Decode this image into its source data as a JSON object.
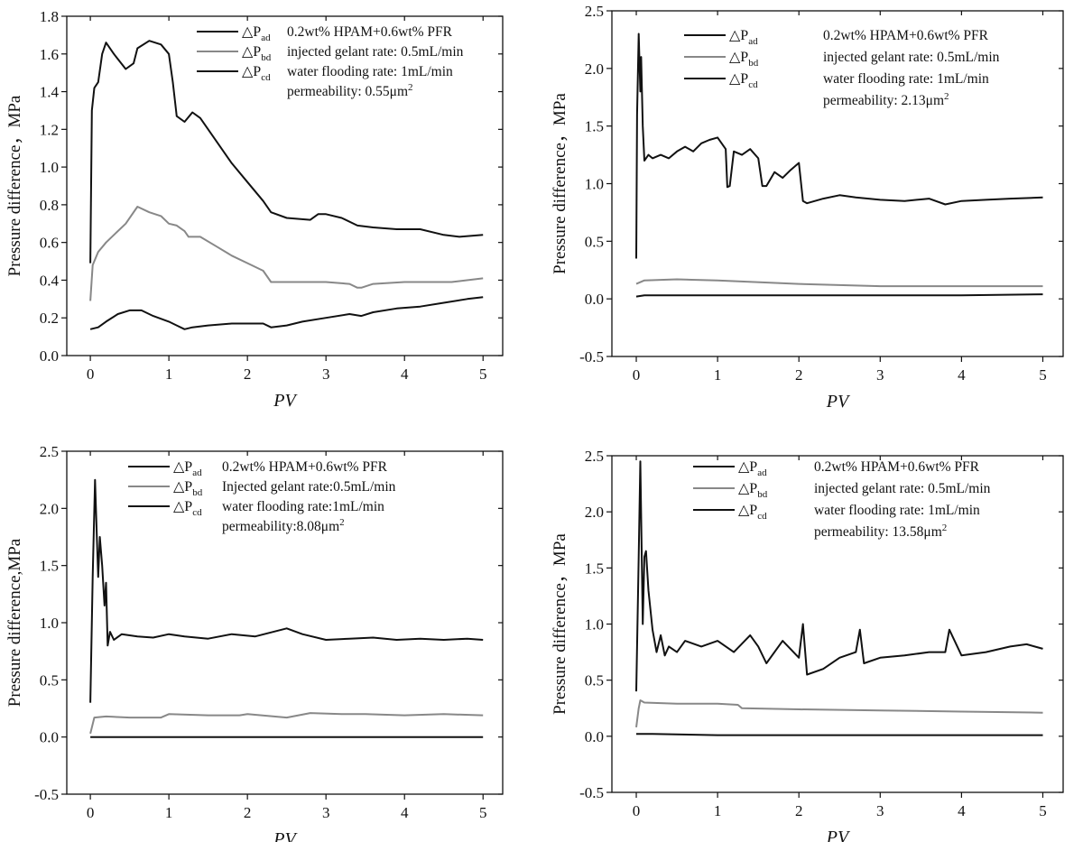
{
  "chart_data": [
    {
      "type": "line",
      "xlabel": "PV",
      "ylabel": "Pressure difference，MPa",
      "xlim": [
        -0.3,
        5.25
      ],
      "ylim": [
        0.0,
        1.8
      ],
      "xticks": [
        0,
        1,
        2,
        3,
        4,
        5
      ],
      "yticks": [
        0.0,
        0.2,
        0.4,
        0.6,
        0.8,
        1.0,
        1.2,
        1.4,
        1.6,
        1.8
      ],
      "ytick_labels": [
        "0.0",
        "0.2",
        "0.4",
        "0.6",
        "0.8",
        "1.0",
        "1.2",
        "1.4",
        "1.6",
        "1.8"
      ],
      "legend": [
        {
          "base": "△P",
          "sub": "ad",
          "note": "0.2wt% HPAM+0.6wt% PFR"
        },
        {
          "base": "△P",
          "sub": "bd",
          "note": "injected gelant rate: 0.5mL/min"
        },
        {
          "base": "△P",
          "sub": "cd",
          "note": "water flooding rate: 1mL/min"
        },
        {
          "base": "",
          "sub": "",
          "note": "permeability: 0.55μm",
          "sup": "2"
        }
      ],
      "series": [
        {
          "name": "△Pad",
          "color": "#111111",
          "x": [
            0.0,
            0.02,
            0.05,
            0.1,
            0.15,
            0.2,
            0.3,
            0.45,
            0.55,
            0.6,
            0.75,
            0.9,
            1.0,
            1.05,
            1.1,
            1.2,
            1.3,
            1.4,
            1.6,
            1.8,
            2.0,
            2.2,
            2.3,
            2.5,
            2.8,
            2.9,
            3.0,
            3.2,
            3.4,
            3.6,
            3.9,
            4.2,
            4.5,
            4.7,
            5.0
          ],
          "y": [
            0.49,
            1.3,
            1.42,
            1.45,
            1.6,
            1.66,
            1.6,
            1.52,
            1.55,
            1.63,
            1.67,
            1.65,
            1.6,
            1.45,
            1.27,
            1.24,
            1.29,
            1.26,
            1.14,
            1.02,
            0.92,
            0.82,
            0.76,
            0.73,
            0.72,
            0.75,
            0.75,
            0.73,
            0.69,
            0.68,
            0.67,
            0.67,
            0.64,
            0.63,
            0.64
          ]
        },
        {
          "name": "△Pbd",
          "color": "#888888",
          "x": [
            0.0,
            0.03,
            0.1,
            0.2,
            0.3,
            0.45,
            0.6,
            0.75,
            0.9,
            1.0,
            1.1,
            1.2,
            1.25,
            1.4,
            1.6,
            1.8,
            2.0,
            2.2,
            2.3,
            2.5,
            2.8,
            3.0,
            3.3,
            3.4,
            3.45,
            3.6,
            4.0,
            4.3,
            4.6,
            5.0
          ],
          "y": [
            0.29,
            0.48,
            0.55,
            0.6,
            0.64,
            0.7,
            0.79,
            0.76,
            0.74,
            0.7,
            0.69,
            0.66,
            0.63,
            0.63,
            0.58,
            0.53,
            0.49,
            0.45,
            0.39,
            0.39,
            0.39,
            0.39,
            0.38,
            0.36,
            0.36,
            0.38,
            0.39,
            0.39,
            0.39,
            0.41
          ]
        },
        {
          "name": "△Pcd",
          "color": "#111111",
          "x": [
            0.0,
            0.1,
            0.2,
            0.35,
            0.5,
            0.65,
            0.8,
            1.0,
            1.1,
            1.2,
            1.3,
            1.5,
            1.8,
            2.1,
            2.2,
            2.3,
            2.5,
            2.7,
            3.0,
            3.3,
            3.45,
            3.6,
            3.9,
            4.2,
            4.5,
            4.8,
            5.0
          ],
          "y": [
            0.14,
            0.15,
            0.18,
            0.22,
            0.24,
            0.24,
            0.21,
            0.18,
            0.16,
            0.14,
            0.15,
            0.16,
            0.17,
            0.17,
            0.17,
            0.15,
            0.16,
            0.18,
            0.2,
            0.22,
            0.21,
            0.23,
            0.25,
            0.26,
            0.28,
            0.3,
            0.31
          ]
        }
      ]
    },
    {
      "type": "line",
      "xlabel": "PV",
      "ylabel": "Pressure difference，MPa",
      "xlim": [
        -0.3,
        5.25
      ],
      "ylim": [
        -0.5,
        2.5
      ],
      "xticks": [
        0,
        1,
        2,
        3,
        4,
        5
      ],
      "yticks": [
        -0.5,
        0.0,
        0.5,
        1.0,
        1.5,
        2.0,
        2.5
      ],
      "ytick_labels": [
        "-0.5",
        "0.0",
        "0.5",
        "1.0",
        "1.5",
        "2.0",
        "2.5"
      ],
      "legend": [
        {
          "base": "△P",
          "sub": "ad",
          "note": "0.2wt% HPAM+0.6wt% PFR"
        },
        {
          "base": "△P",
          "sub": "bd",
          "note": "injected gelant rate: 0.5mL/min"
        },
        {
          "base": "△P",
          "sub": "cd",
          "note": "water flooding rate: 1mL/min"
        },
        {
          "base": "",
          "sub": "",
          "note": "permeability: 2.13μm",
          "sup": "2"
        }
      ],
      "series": [
        {
          "name": "△Pad",
          "color": "#111111",
          "x": [
            0.0,
            0.01,
            0.03,
            0.05,
            0.06,
            0.08,
            0.1,
            0.15,
            0.2,
            0.3,
            0.4,
            0.5,
            0.6,
            0.7,
            0.8,
            0.9,
            1.0,
            1.05,
            1.1,
            1.12,
            1.15,
            1.2,
            1.3,
            1.4,
            1.5,
            1.55,
            1.6,
            1.7,
            1.8,
            1.9,
            2.0,
            2.05,
            2.1,
            2.3,
            2.5,
            2.7,
            3.0,
            3.3,
            3.6,
            3.8,
            4.0,
            4.3,
            4.6,
            5.0
          ],
          "y": [
            0.35,
            1.6,
            2.3,
            1.8,
            2.1,
            1.5,
            1.2,
            1.25,
            1.22,
            1.25,
            1.22,
            1.28,
            1.32,
            1.28,
            1.35,
            1.38,
            1.4,
            1.35,
            1.3,
            0.97,
            0.98,
            1.28,
            1.25,
            1.3,
            1.22,
            0.98,
            0.98,
            1.1,
            1.05,
            1.12,
            1.18,
            0.85,
            0.83,
            0.87,
            0.9,
            0.88,
            0.86,
            0.85,
            0.87,
            0.82,
            0.85,
            0.86,
            0.87,
            0.88
          ]
        },
        {
          "name": "△Pbd",
          "color": "#888888",
          "x": [
            0.0,
            0.1,
            0.5,
            1.0,
            2.0,
            3.0,
            4.0,
            5.0
          ],
          "y": [
            0.13,
            0.16,
            0.17,
            0.16,
            0.13,
            0.11,
            0.11,
            0.11
          ]
        },
        {
          "name": "△Pcd",
          "color": "#111111",
          "x": [
            0.0,
            0.1,
            1.0,
            2.0,
            3.0,
            4.0,
            5.0
          ],
          "y": [
            0.02,
            0.03,
            0.03,
            0.03,
            0.03,
            0.03,
            0.04
          ]
        }
      ]
    },
    {
      "type": "line",
      "xlabel": "PV",
      "ylabel": "Pressure difference,MPa",
      "xlim": [
        -0.3,
        5.25
      ],
      "ylim": [
        -0.5,
        2.5
      ],
      "xticks": [
        0,
        1,
        2,
        3,
        4,
        5
      ],
      "yticks": [
        -0.5,
        0.0,
        0.5,
        1.0,
        1.5,
        2.0,
        2.5
      ],
      "ytick_labels": [
        "-0.5",
        "0.0",
        "0.5",
        "1.0",
        "1.5",
        "2.0",
        "2.5"
      ],
      "legend": [
        {
          "base": "△P",
          "sub": "ad",
          "note": "0.2wt% HPAM+0.6wt% PFR"
        },
        {
          "base": "△P",
          "sub": "bd",
          "note": "Injected gelant rate:0.5mL/min"
        },
        {
          "base": "△P",
          "sub": "cd",
          "note": "water flooding rate:1mL/min"
        },
        {
          "base": "",
          "sub": "",
          "note": "permeability:8.08μm",
          "sup": "2"
        }
      ],
      "series": [
        {
          "name": "△Pad",
          "color": "#111111",
          "x": [
            0.0,
            0.03,
            0.06,
            0.08,
            0.1,
            0.12,
            0.15,
            0.18,
            0.2,
            0.22,
            0.25,
            0.3,
            0.4,
            0.6,
            0.8,
            1.0,
            1.2,
            1.5,
            1.8,
            2.1,
            2.5,
            2.7,
            3.0,
            3.3,
            3.6,
            3.9,
            4.2,
            4.5,
            4.8,
            5.0
          ],
          "y": [
            0.3,
            1.4,
            2.25,
            1.8,
            1.4,
            1.75,
            1.5,
            1.15,
            1.35,
            0.8,
            0.92,
            0.85,
            0.9,
            0.88,
            0.87,
            0.9,
            0.88,
            0.86,
            0.9,
            0.88,
            0.95,
            0.9,
            0.85,
            0.86,
            0.87,
            0.85,
            0.86,
            0.85,
            0.86,
            0.85
          ]
        },
        {
          "name": "△Pbd",
          "color": "#888888",
          "x": [
            0.0,
            0.05,
            0.2,
            0.5,
            0.9,
            1.0,
            1.5,
            1.9,
            2.0,
            2.5,
            2.8,
            3.2,
            3.5,
            4.0,
            4.5,
            5.0
          ],
          "y": [
            0.03,
            0.17,
            0.18,
            0.17,
            0.17,
            0.2,
            0.19,
            0.19,
            0.2,
            0.17,
            0.21,
            0.2,
            0.2,
            0.19,
            0.2,
            0.19
          ]
        },
        {
          "name": "△Pcd",
          "color": "#111111",
          "x": [
            0.0,
            0.1,
            1.0,
            2.0,
            3.0,
            4.0,
            5.0
          ],
          "y": [
            0.0,
            0.0,
            0.0,
            0.0,
            0.0,
            0.0,
            0.0
          ]
        }
      ]
    },
    {
      "type": "line",
      "xlabel": "PV",
      "ylabel": "Pressure difference，MPa",
      "xlim": [
        -0.3,
        5.25
      ],
      "ylim": [
        -0.5,
        2.5
      ],
      "xticks": [
        0,
        1,
        2,
        3,
        4,
        5
      ],
      "yticks": [
        -0.5,
        0.0,
        0.5,
        1.0,
        1.5,
        2.0,
        2.5
      ],
      "ytick_labels": [
        "-0.5",
        "0.0",
        "0.5",
        "1.0",
        "1.5",
        "2.0",
        "2.5"
      ],
      "legend": [
        {
          "base": "△P",
          "sub": "ad",
          "note": "0.2wt% HPAM+0.6wt% PFR"
        },
        {
          "base": "△P",
          "sub": "bd",
          "note": "injected gelant rate: 0.5mL/min"
        },
        {
          "base": "△P",
          "sub": "cd",
          "note": "water flooding rate: 1mL/min"
        },
        {
          "base": "",
          "sub": "",
          "note": "permeability: 13.58μm",
          "sup": "2"
        }
      ],
      "series": [
        {
          "name": "△Pad",
          "color": "#111111",
          "x": [
            0.0,
            0.03,
            0.05,
            0.08,
            0.1,
            0.12,
            0.15,
            0.2,
            0.25,
            0.3,
            0.35,
            0.4,
            0.5,
            0.6,
            0.8,
            1.0,
            1.2,
            1.4,
            1.5,
            1.6,
            1.8,
            2.0,
            2.05,
            2.1,
            2.3,
            2.5,
            2.7,
            2.75,
            2.8,
            3.0,
            3.3,
            3.6,
            3.8,
            3.85,
            4.0,
            4.3,
            4.6,
            4.8,
            5.0
          ],
          "y": [
            0.4,
            1.6,
            2.45,
            1.0,
            1.6,
            1.65,
            1.3,
            0.95,
            0.75,
            0.9,
            0.72,
            0.8,
            0.75,
            0.85,
            0.8,
            0.85,
            0.75,
            0.9,
            0.8,
            0.65,
            0.85,
            0.7,
            1.0,
            0.55,
            0.6,
            0.7,
            0.75,
            0.95,
            0.65,
            0.7,
            0.72,
            0.75,
            0.75,
            0.95,
            0.72,
            0.75,
            0.8,
            0.82,
            0.78
          ]
        },
        {
          "name": "△Pbd",
          "color": "#888888",
          "x": [
            0.0,
            0.03,
            0.05,
            0.1,
            0.5,
            1.0,
            1.25,
            1.3,
            2.0,
            3.0,
            4.0,
            5.0
          ],
          "y": [
            0.08,
            0.25,
            0.32,
            0.3,
            0.29,
            0.29,
            0.28,
            0.25,
            0.24,
            0.23,
            0.22,
            0.21
          ]
        },
        {
          "name": "△Pcd",
          "color": "#111111",
          "x": [
            0.0,
            0.05,
            0.2,
            1.0,
            2.0,
            3.0,
            4.0,
            5.0
          ],
          "y": [
            0.02,
            0.02,
            0.02,
            0.01,
            0.01,
            0.01,
            0.01,
            0.01
          ]
        }
      ]
    }
  ]
}
